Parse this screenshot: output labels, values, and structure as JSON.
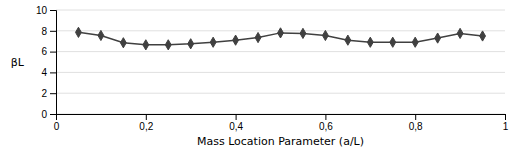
{
  "chart_data": {
    "type": "line",
    "x": [
      0.05,
      0.1,
      0.15,
      0.2,
      0.25,
      0.3,
      0.35,
      0.4,
      0.45,
      0.5,
      0.55,
      0.6,
      0.65,
      0.7,
      0.75,
      0.8,
      0.85,
      0.9,
      0.95
    ],
    "values": [
      7.85,
      7.55,
      6.85,
      6.65,
      6.65,
      6.75,
      6.9,
      7.1,
      7.35,
      7.8,
      7.75,
      7.55,
      7.1,
      6.9,
      6.9,
      6.9,
      7.3,
      7.75,
      7.5
    ],
    "xlabel": "Mass Location Parameter (a/L)",
    "ylabel": "βL",
    "xlim": [
      0,
      1.0
    ],
    "ylim": [
      0,
      10
    ],
    "xticks": [
      0,
      {
        "value": 0.2,
        "label": "0,2"
      },
      {
        "value": 0.4,
        "label": "0,4"
      },
      {
        "value": 0.6,
        "label": "0,6"
      },
      {
        "value": 0.8,
        "label": "0,8"
      },
      1
    ],
    "yticks": [
      0,
      2,
      4,
      6,
      8,
      10
    ],
    "color": "#404040",
    "marker": "diamond",
    "grid": true
  }
}
